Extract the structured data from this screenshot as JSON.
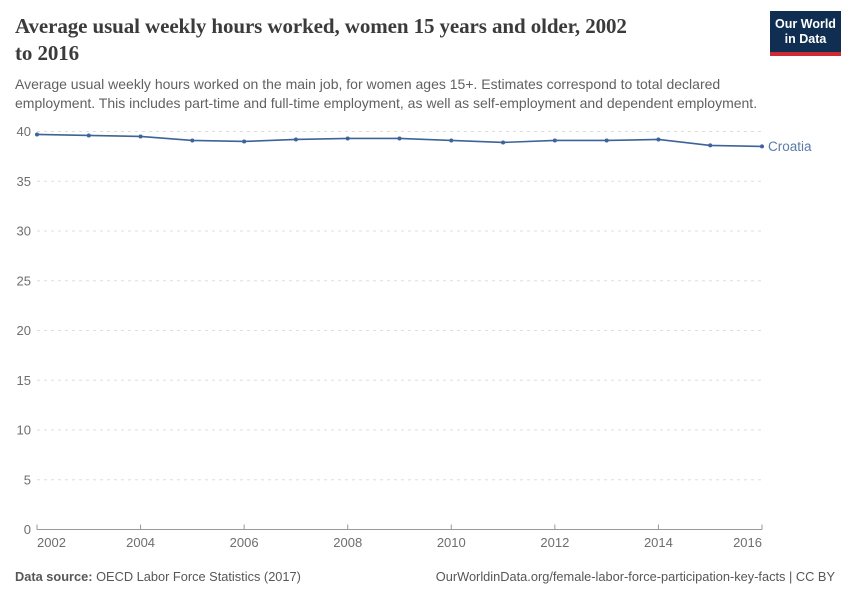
{
  "header": {
    "title_line1": "Average usual weekly hours worked, women 15 years and older, 2002",
    "title_line2": "to 2016",
    "logo_line1": "Our World",
    "logo_line2": "in Data"
  },
  "subtitle": {
    "line1": "Average usual weekly hours worked on the main job, for women ages 15+. Estimates correspond to total declared",
    "line2": "employment. This includes part-time and full-time employment, as well as self-employment and dependent employment."
  },
  "chart_data": {
    "type": "line",
    "title": "Average usual weekly hours worked, women 15 years and older, 2002 to 2016",
    "x": [
      2002,
      2003,
      2004,
      2005,
      2006,
      2007,
      2008,
      2009,
      2010,
      2011,
      2012,
      2013,
      2014,
      2015,
      2016
    ],
    "series": [
      {
        "name": "Croatia",
        "color": "#3d6399",
        "values": [
          39.7,
          39.6,
          39.5,
          39.1,
          39.0,
          39.2,
          39.3,
          39.3,
          39.1,
          38.9,
          39.1,
          39.1,
          39.2,
          38.6,
          38.5
        ]
      }
    ],
    "xlabel": "",
    "ylabel": "",
    "ylim": [
      0,
      40
    ],
    "yticks": [
      0,
      5,
      10,
      15,
      20,
      25,
      30,
      35,
      40
    ],
    "xticks": [
      2002,
      2004,
      2006,
      2008,
      2010,
      2012,
      2014,
      2016
    ],
    "grid": "horizontal dashed",
    "legend_position": "label at end of line"
  },
  "footer": {
    "source_label": "Data source:",
    "source_text": "OECD Labor Force Statistics (2017)",
    "link_text": "OurWorldinData.org/female-labor-force-participation-key-facts | CC BY"
  },
  "colors": {
    "line": "#3d6399",
    "series_label": "#577ca8",
    "title_text": "#3b3b3b",
    "subtitle_text": "#616161",
    "axis_text": "#6e6e6e",
    "gridline": "#dddddd",
    "axis_line": "#999999",
    "logo_background": "#0f2e52",
    "logo_red_bar": "#cc2b36"
  }
}
